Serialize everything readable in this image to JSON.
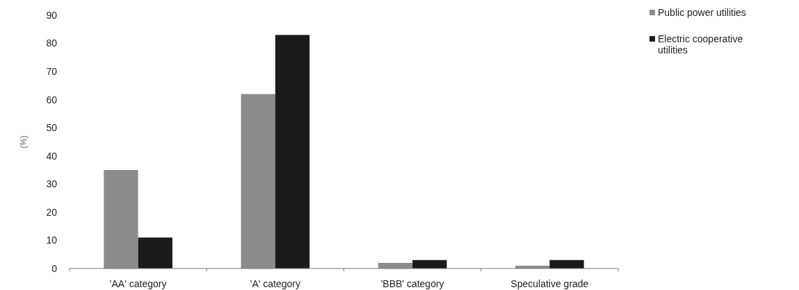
{
  "chart_data": {
    "type": "bar",
    "ylabel": "(%)",
    "categories": [
      "'AA' category",
      "'A' category",
      "'BBB' category",
      "Speculative grade"
    ],
    "series": [
      {
        "name": "Public power utilities",
        "color": "#8c8c8c",
        "values": [
          35,
          62,
          2,
          1
        ]
      },
      {
        "name": "Electric cooperative utilities",
        "color": "#1a1a1a",
        "values": [
          11,
          83,
          3,
          3
        ]
      }
    ],
    "ylim": [
      0,
      90
    ],
    "yticks": [
      0,
      10,
      20,
      30,
      40,
      50,
      60,
      70,
      80,
      90
    ],
    "grid": false,
    "legend": "top right"
  }
}
